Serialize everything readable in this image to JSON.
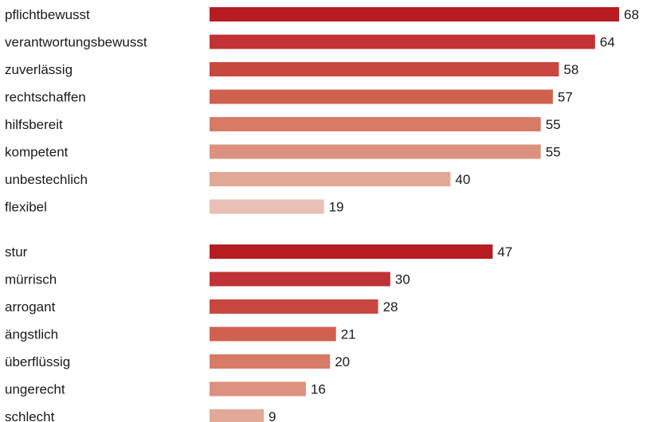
{
  "chart_data": {
    "type": "bar",
    "orientation": "horizontal",
    "title": "",
    "xlabel": "",
    "ylabel": "",
    "grid": false,
    "data_labels": true,
    "groups": [
      {
        "categories": [
          "pflichtbewusst",
          "verantwortungsbewusst",
          "zuverlässig",
          "rechtschaffen",
          "hilfsbereit",
          "kompetent",
          "unbestechlich",
          "flexibel"
        ],
        "values": [
          68,
          64,
          58,
          57,
          55,
          55,
          40,
          19
        ],
        "colors": [
          "#b71c23",
          "#c03236",
          "#c8483f",
          "#d0614f",
          "#d77b66",
          "#db917d",
          "#e2a898",
          "#e9c0b4"
        ]
      },
      {
        "categories": [
          "stur",
          "mürrisch",
          "arrogant",
          "ängstlich",
          "überflüssig",
          "ungerecht",
          "schlecht"
        ],
        "values": [
          47,
          30,
          28,
          21,
          20,
          16,
          9
        ],
        "colors": [
          "#b71c23",
          "#c03236",
          "#c8483f",
          "#d0614f",
          "#d77b66",
          "#db917d",
          "#e2a898"
        ]
      }
    ]
  }
}
